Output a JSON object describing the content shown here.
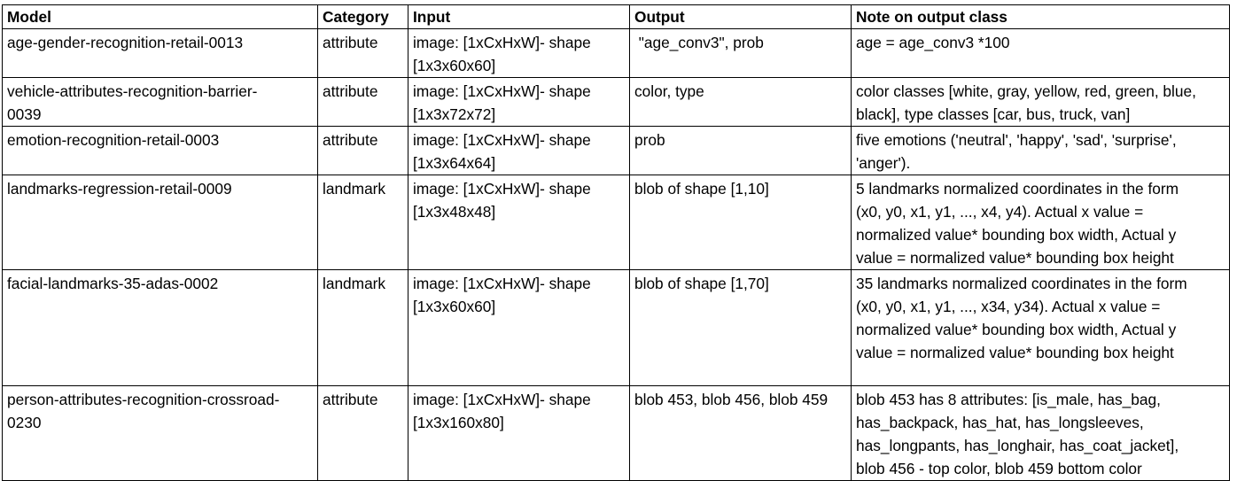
{
  "headers": {
    "model": "Model",
    "category": "Category",
    "input": "Input",
    "output": "Output",
    "note": "Note on output class"
  },
  "rows": [
    {
      "model": [
        "age-gender-recognition-retail-0013"
      ],
      "category": "attribute",
      "input": [
        "image:  [1xCxHxW]- shape",
        "[1x3x60x60]"
      ],
      "output": [
        " \"age_conv3\", prob"
      ],
      "note": [
        "age = age_conv3 *100"
      ]
    },
    {
      "model": [
        "vehicle-attributes-recognition-barrier-",
        "0039"
      ],
      "category": "attribute",
      "input": [
        "image:  [1xCxHxW]- shape",
        "[1x3x72x72]"
      ],
      "output": [
        "color, type"
      ],
      "note": [
        "color classes [white, gray, yellow, red, green, blue,",
        "black], type classes [car, bus, truck, van]"
      ]
    },
    {
      "model": [
        "emotion-recognition-retail-0003"
      ],
      "category": "attribute",
      "input": [
        "image:  [1xCxHxW]- shape",
        "[1x3x64x64]"
      ],
      "output": [
        "prob"
      ],
      "note": [
        "five emotions ('neutral', 'happy', 'sad', 'surprise',",
        "'anger')."
      ]
    },
    {
      "model": [
        "landmarks-regression-retail-0009"
      ],
      "category": "landmark",
      "input": [
        "image:  [1xCxHxW]- shape",
        "[1x3x48x48]"
      ],
      "output": [
        "blob of shape [1,10]"
      ],
      "note": [
        "5 landmarks normalized coordinates in the form",
        "(x0, y0, x1, y1, ..., x4, y4).  Actual x value =",
        "normalized value* bounding box width, Actual y",
        "value = normalized value* bounding box height"
      ]
    },
    {
      "model": [
        "facial-landmarks-35-adas-0002"
      ],
      "category": "landmark",
      "input": [
        "image:  [1xCxHxW]- shape",
        "[1x3x60x60]"
      ],
      "output": [
        "blob of shape [1,70]"
      ],
      "note": [
        "35 landmarks normalized coordinates in the form",
        "(x0, y0, x1, y1, ..., x34, y34).  Actual x value =",
        "normalized value* bounding box width, Actual y",
        "value = normalized value* bounding box height"
      ]
    },
    {
      "model": [
        "person-attributes-recognition-crossroad-",
        "0230"
      ],
      "category": "attribute",
      "input": [
        "image:  [1xCxHxW]- shape",
        "[1x3x160x80]"
      ],
      "output": [
        "blob 453, blob 456, blob 459"
      ],
      "note": [
        "blob 453 has 8 attributes: [is_male, has_bag,",
        "has_backpack, has_hat, has_longsleeves,",
        "has_longpants, has_longhair, has_coat_jacket],",
        "blob 456 - top color, blob 459 bottom color"
      ]
    }
  ]
}
